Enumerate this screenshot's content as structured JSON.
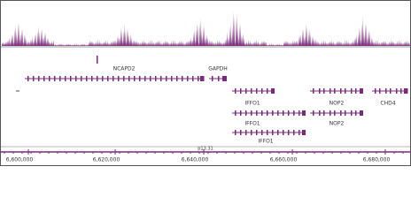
{
  "coverage_track": {},
  "genes": [
    {
      "label": "NCAPD2"
    },
    {
      "label": "GAPDH"
    },
    {
      "label": "IFFO1"
    },
    {
      "label": "NOP2"
    },
    {
      "label": "CHD4"
    },
    {
      "label": "IFFO1"
    },
    {
      "label": "NOP2"
    },
    {
      "label": "IFFO1"
    }
  ],
  "ruler": {
    "band": "p13.31",
    "ticks": [
      "6,600,000",
      "6,620,000",
      "6,640,000",
      "6,660,000",
      "6,680,000"
    ]
  }
}
